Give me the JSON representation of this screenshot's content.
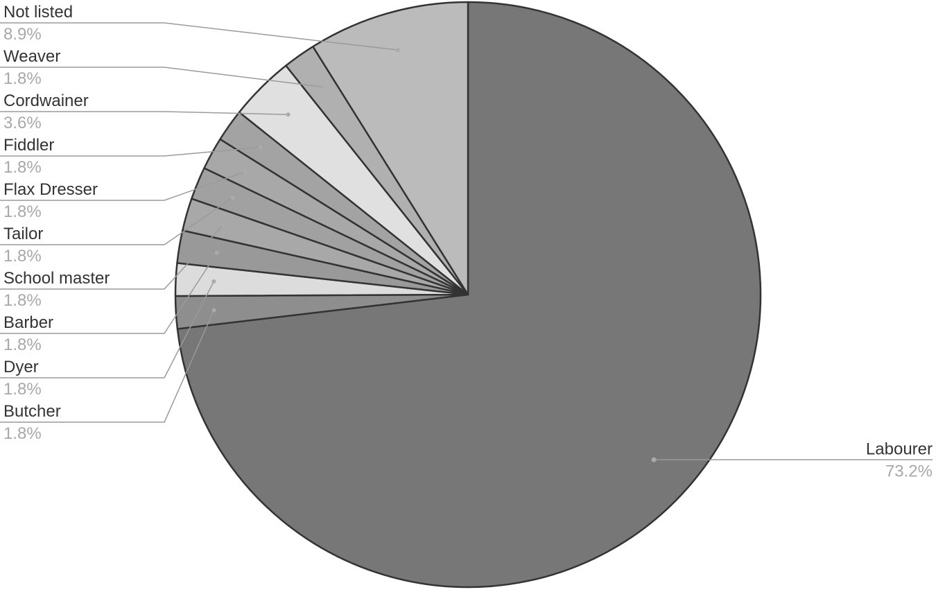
{
  "chart_data": {
    "type": "pie",
    "start_angle_deg": 0,
    "direction": "clockwise",
    "legend": "none",
    "slices": [
      {
        "label": "Labourer",
        "value": 73.2,
        "value_label": "73.2%",
        "color": "#777777"
      },
      {
        "label": "Butcher",
        "value": 1.8,
        "value_label": "1.8%",
        "color": "#8e8e8e"
      },
      {
        "label": "Dyer",
        "value": 1.8,
        "value_label": "1.8%",
        "color": "#dcdcdc"
      },
      {
        "label": "Barber",
        "value": 1.8,
        "value_label": "1.8%",
        "color": "#999999"
      },
      {
        "label": "School master",
        "value": 1.8,
        "value_label": "1.8%",
        "color": "#a8a8a8"
      },
      {
        "label": "Tailor",
        "value": 1.8,
        "value_label": "1.8%",
        "color": "#a1a1a1"
      },
      {
        "label": "Flax Dresser",
        "value": 1.8,
        "value_label": "1.8%",
        "color": "#a8a8a8"
      },
      {
        "label": "Fiddler",
        "value": 1.8,
        "value_label": "1.8%",
        "color": "#a3a3a3"
      },
      {
        "label": "Cordwainer",
        "value": 3.6,
        "value_label": "3.6%",
        "color": "#e0e0e0"
      },
      {
        "label": "Weaver",
        "value": 1.8,
        "value_label": "1.8%",
        "color": "#b0b0b0"
      },
      {
        "label": "Not listed",
        "value": 8.9,
        "value_label": "8.9%",
        "color": "#bbbbbb"
      }
    ]
  }
}
